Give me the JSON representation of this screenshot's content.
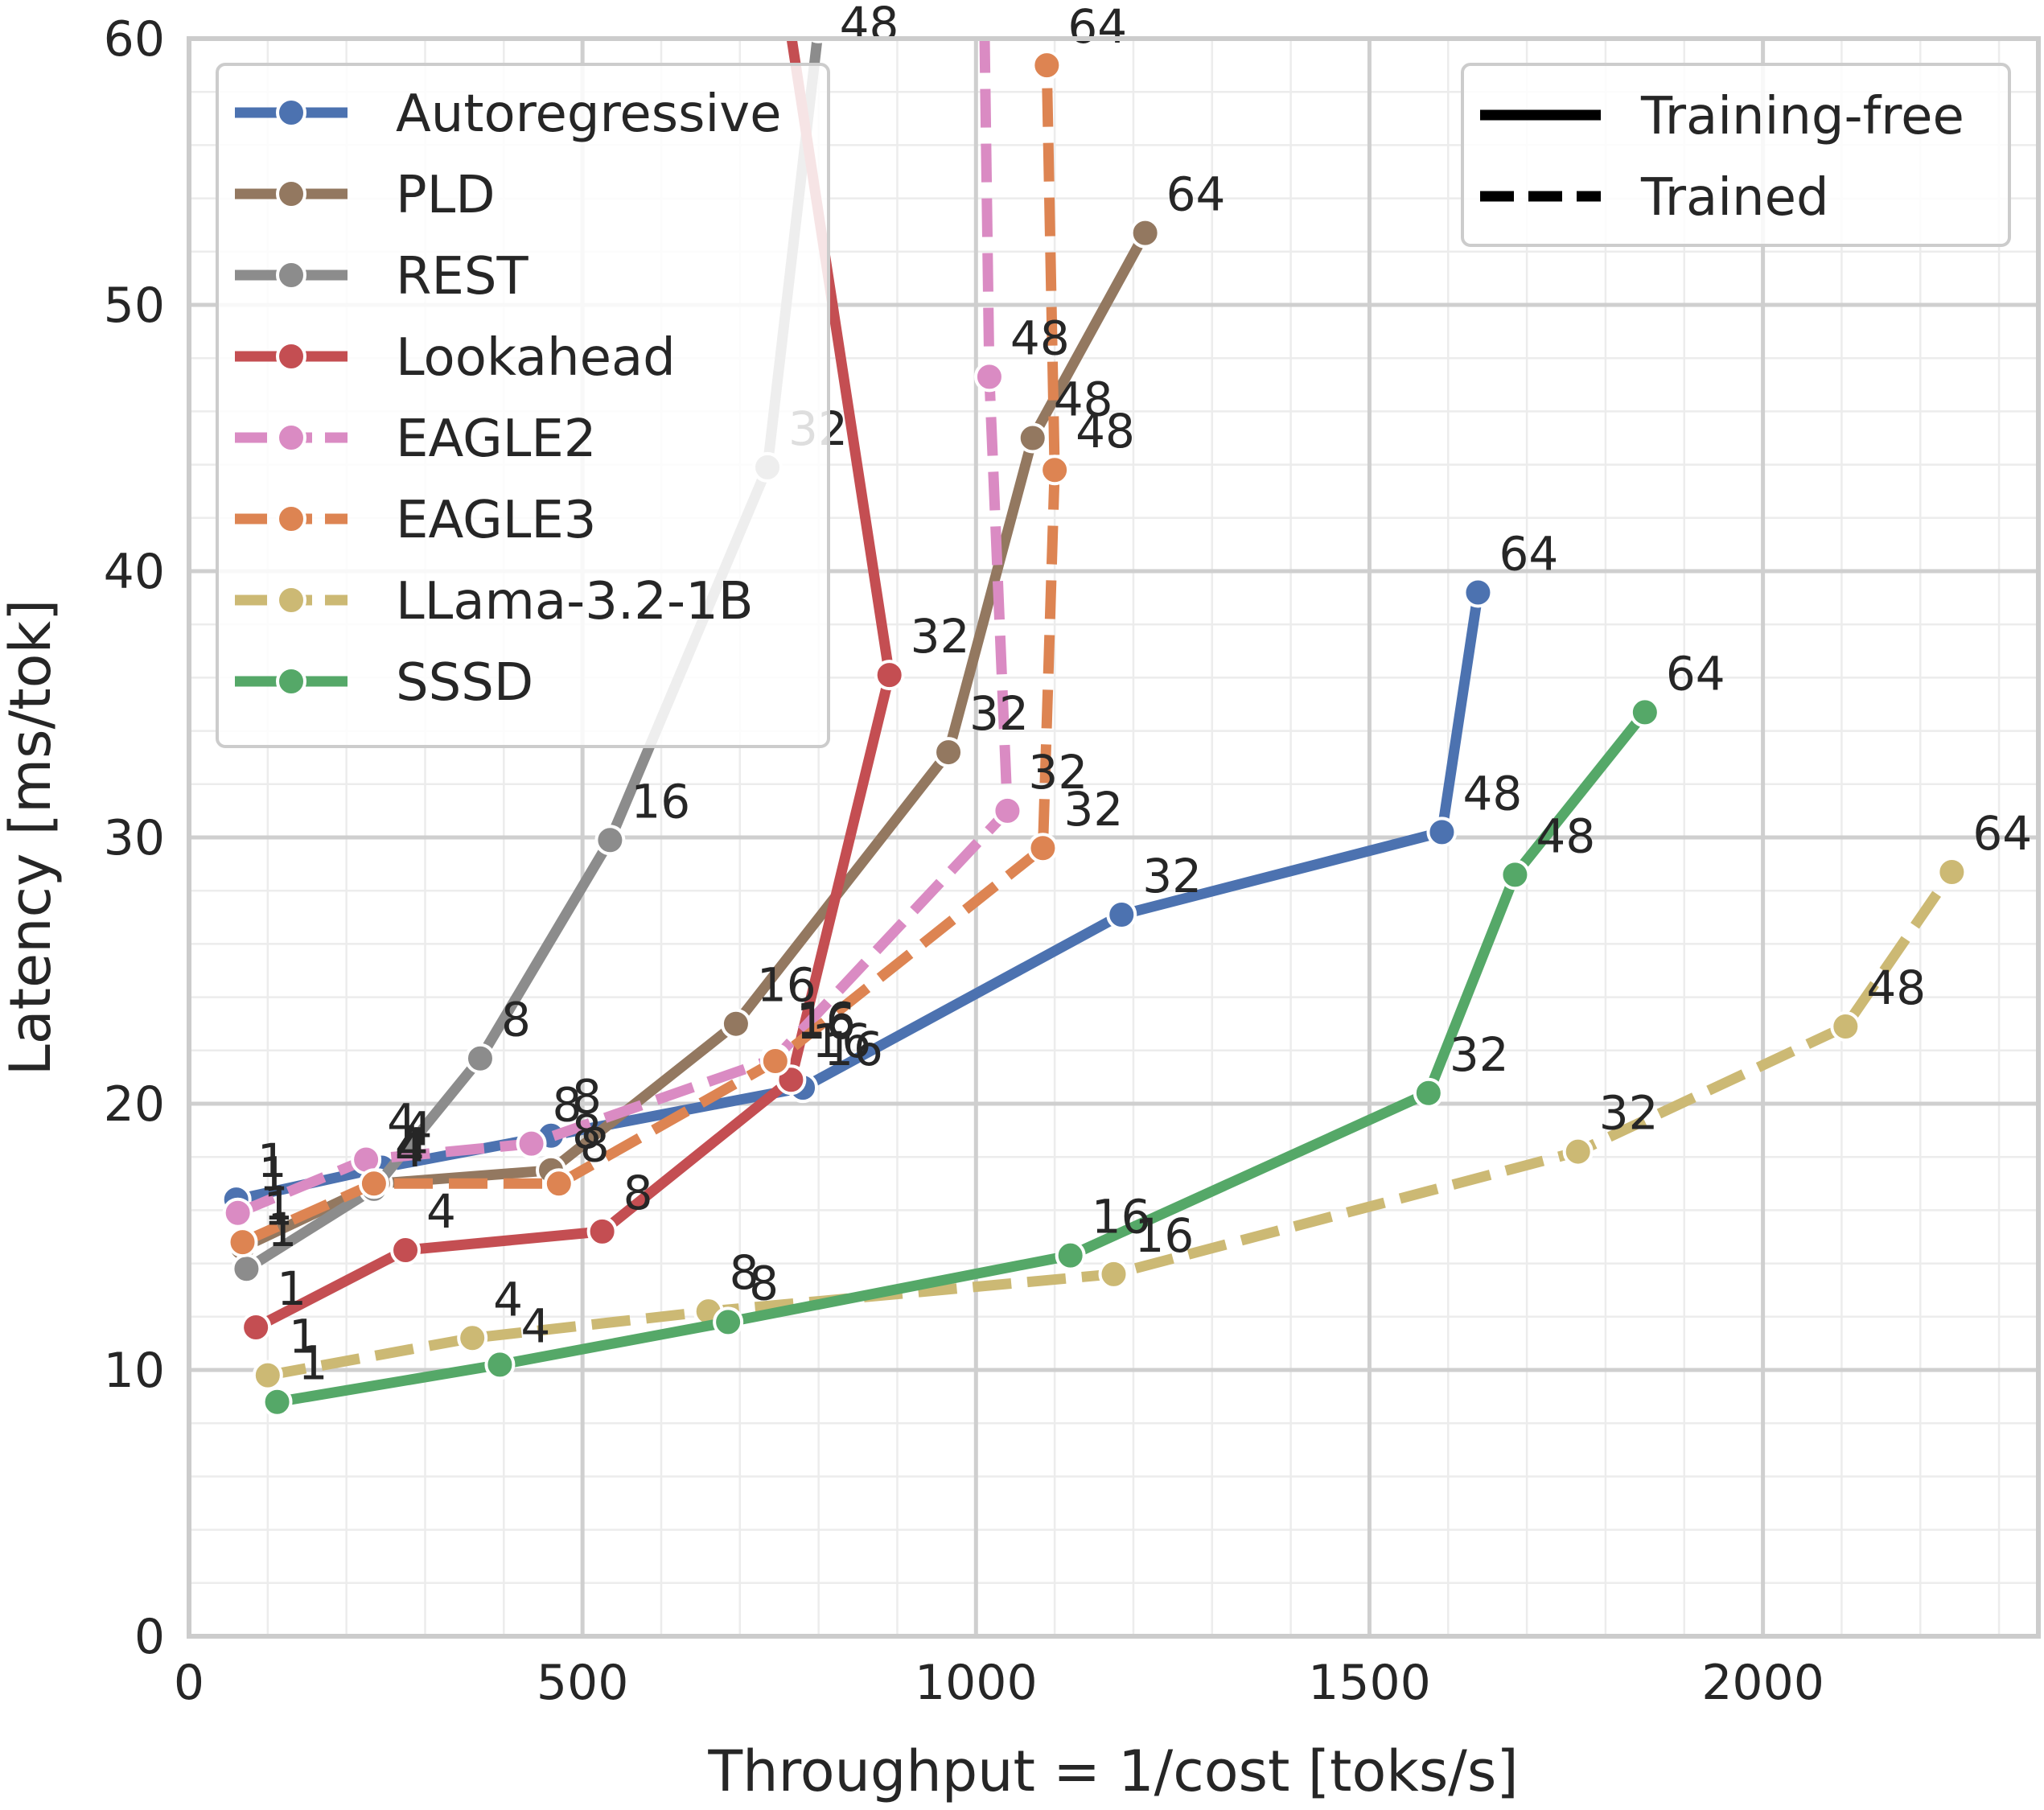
{
  "chart_data": {
    "type": "line",
    "xlabel": "Throughput = 1/cost [toks/s]",
    "ylabel": "Latency [ms/tok]",
    "xlim": [
      0,
      2350
    ],
    "ylim": [
      0,
      60
    ],
    "xticks": [
      0,
      500,
      1000,
      1500,
      2000
    ],
    "yticks": [
      0,
      10,
      20,
      30,
      40,
      50,
      60
    ],
    "grid": true,
    "legend_position": "top-left",
    "style_legend_position": "top-right",
    "style_legend": [
      {
        "label": "Training-free",
        "dash": "solid"
      },
      {
        "label": "Trained",
        "dash": "dashed"
      }
    ],
    "series": [
      {
        "name": "Autoregressive",
        "color": "#4c72b0",
        "dash": "solid",
        "points": [
          {
            "x": 60,
            "y": 16.4,
            "label": "1"
          },
          {
            "x": 245,
            "y": 17.6,
            "label": "4"
          },
          {
            "x": 460,
            "y": 18.8,
            "label": "8"
          },
          {
            "x": 780,
            "y": 20.6,
            "label": "16"
          },
          {
            "x": 1185,
            "y": 27.1,
            "label": "32"
          },
          {
            "x": 1592,
            "y": 30.2,
            "label": "48"
          },
          {
            "x": 1638,
            "y": 39.2,
            "label": "64"
          }
        ]
      },
      {
        "name": "PLD",
        "color": "#937860",
        "dash": "solid",
        "points": [
          {
            "x": 68,
            "y": 14.6,
            "label": "1"
          },
          {
            "x": 240,
            "y": 17.0,
            "label": "4"
          },
          {
            "x": 460,
            "y": 17.5,
            "label": "8"
          },
          {
            "x": 695,
            "y": 23.0,
            "label": "16"
          },
          {
            "x": 965,
            "y": 33.2,
            "label": "32"
          },
          {
            "x": 1072,
            "y": 45.0,
            "label": "48"
          },
          {
            "x": 1215,
            "y": 52.7,
            "label": "64"
          }
        ]
      },
      {
        "name": "REST",
        "color": "#8c8c8c",
        "dash": "solid",
        "points": [
          {
            "x": 73,
            "y": 13.8,
            "label": "1"
          },
          {
            "x": 235,
            "y": 16.8,
            "label": "4"
          },
          {
            "x": 370,
            "y": 21.7,
            "label": "8"
          },
          {
            "x": 535,
            "y": 29.9,
            "label": "16"
          },
          {
            "x": 735,
            "y": 43.9,
            "label": "32"
          },
          {
            "x": 800,
            "y": 60.4,
            "label": "48"
          }
        ]
      },
      {
        "name": "Lookahead",
        "color": "#c44e52",
        "dash": "solid",
        "points": [
          {
            "x": 85,
            "y": 11.6,
            "label": "1"
          },
          {
            "x": 275,
            "y": 14.5,
            "label": "4"
          },
          {
            "x": 525,
            "y": 15.2,
            "label": "8"
          },
          {
            "x": 765,
            "y": 20.9,
            "label": "16"
          },
          {
            "x": 890,
            "y": 36.1,
            "label": "32"
          },
          {
            "x": 745,
            "y": 64.0,
            "label": ""
          }
        ]
      },
      {
        "name": "EAGLE2",
        "color": "#da8bc3",
        "dash": "dashed",
        "points": [
          {
            "x": 62,
            "y": 15.9,
            "label": "1"
          },
          {
            "x": 225,
            "y": 17.9,
            "label": "4"
          },
          {
            "x": 435,
            "y": 18.5,
            "label": "8"
          },
          {
            "x": 745,
            "y": 21.7,
            "label": "16"
          },
          {
            "x": 1040,
            "y": 31.0,
            "label": "32"
          },
          {
            "x": 1017,
            "y": 47.3,
            "label": "48"
          },
          {
            "x": 1010,
            "y": 62.0,
            "label": ""
          }
        ]
      },
      {
        "name": "EAGLE3",
        "color": "#dd8452",
        "dash": "dashed",
        "points": [
          {
            "x": 68,
            "y": 14.8,
            "label": "1"
          },
          {
            "x": 235,
            "y": 17.0,
            "label": "4"
          },
          {
            "x": 470,
            "y": 17.0,
            "label": "8"
          },
          {
            "x": 745,
            "y": 21.6,
            "label": "16"
          },
          {
            "x": 1085,
            "y": 29.6,
            "label": "32"
          },
          {
            "x": 1100,
            "y": 43.8,
            "label": "48"
          },
          {
            "x": 1090,
            "y": 59.0,
            "label": "64"
          }
        ]
      },
      {
        "name": "LLama-3.2-1B",
        "color": "#ccb974",
        "dash": "dashed",
        "points": [
          {
            "x": 100,
            "y": 9.8,
            "label": "1"
          },
          {
            "x": 360,
            "y": 11.2,
            "label": "4"
          },
          {
            "x": 660,
            "y": 12.2,
            "label": "8"
          },
          {
            "x": 1175,
            "y": 13.6,
            "label": "16"
          },
          {
            "x": 1765,
            "y": 18.2,
            "label": "32"
          },
          {
            "x": 2105,
            "y": 22.9,
            "label": "48"
          },
          {
            "x": 2240,
            "y": 28.7,
            "label": "64"
          }
        ]
      },
      {
        "name": "SSSD",
        "color": "#55a868",
        "dash": "solid",
        "points": [
          {
            "x": 112,
            "y": 8.8,
            "label": "1"
          },
          {
            "x": 395,
            "y": 10.2,
            "label": "4"
          },
          {
            "x": 685,
            "y": 11.8,
            "label": "8"
          },
          {
            "x": 1120,
            "y": 14.3,
            "label": "16"
          },
          {
            "x": 1575,
            "y": 20.4,
            "label": "32"
          },
          {
            "x": 1685,
            "y": 28.6,
            "label": "48"
          },
          {
            "x": 1850,
            "y": 34.7,
            "label": "64"
          }
        ]
      }
    ]
  }
}
